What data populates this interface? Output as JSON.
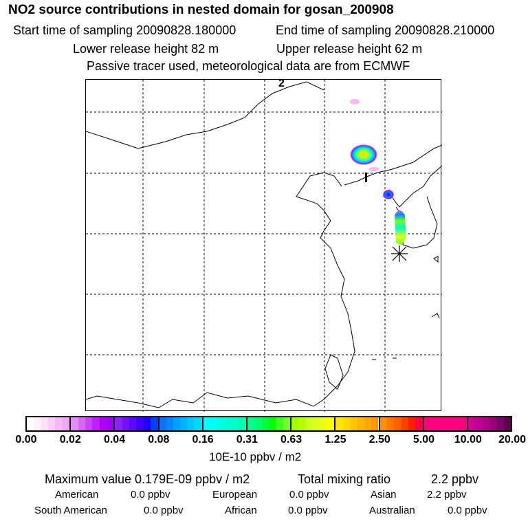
{
  "title": "NO2 source contributions in nested domain for gosan_200908",
  "header": {
    "start": "Start time of sampling 20090828.180000",
    "end": "End time of sampling 20090828.210000",
    "lower": "Lower release height   82 m",
    "upper": "Upper release height   62 m",
    "note": "Passive tracer used, meteorological data are from ECMWF"
  },
  "map": {
    "labels": [
      "2",
      "1"
    ]
  },
  "colorbar": {
    "ticks": [
      "0.00",
      "0.02",
      "0.04",
      "0.08",
      "0.16",
      "0.31",
      "0.63",
      "1.25",
      "2.50",
      "5.00",
      "10.00",
      "20.00"
    ],
    "unit": "10E-10 ppbv / m2",
    "segments": [
      [
        "#ffffff",
        "#fff0fc",
        "#fde0fa",
        "#f9cdf7",
        "#f4b8f4",
        "#f0a8f2"
      ],
      [
        "#e38ef5",
        "#d866f7",
        "#cc44f8",
        "#c020fa",
        "#b000fb",
        "#a000fc"
      ],
      [
        "#8a20fb",
        "#7010fd",
        "#5a08fe",
        "#4000ff",
        "#2000ff",
        "#0040ff"
      ],
      [
        "#1070ff",
        "#0088ff",
        "#00a0ff",
        "#00b4ff",
        "#00c8ff",
        "#00dcff"
      ],
      [
        "#00ffff",
        "#00fff0",
        "#00ffe0",
        "#00ffd0",
        "#00ffc4",
        "#00ffb4"
      ],
      [
        "#00ff90",
        "#00ff70",
        "#00ff40",
        "#00ff00",
        "#40ff20",
        "#70ff20"
      ],
      [
        "#a0ff00",
        "#b8ff00",
        "#ccff20",
        "#ddff20",
        "#eeff10",
        "#ffff00"
      ],
      [
        "#ffe800",
        "#ffd800",
        "#ffc800",
        "#ffb800",
        "#ffa800",
        "#ff9800"
      ],
      [
        "#ff9000",
        "#ff7800",
        "#ff6000",
        "#ff4000",
        "#ff2000",
        "#ff0040"
      ],
      [
        "#ff0080",
        "#ff0080",
        "#ff0080",
        "#ff0080",
        "#ff0080",
        "#ff0080"
      ],
      [
        "#d0009a",
        "#c00090",
        "#b00088",
        "#9a007a",
        "#80006a",
        "#600050"
      ]
    ]
  },
  "summary": {
    "max": "Maximum value  0.179E-09 ppbv / m2",
    "total_label": "Total mixing ratio",
    "total_value": "2.2 ppbv",
    "rows": [
      [
        [
          "American",
          "0.0 ppbv"
        ],
        [
          "European",
          "0.0 ppbv"
        ],
        [
          "Asian",
          "2.2 ppbv"
        ]
      ],
      [
        [
          "South American",
          "0.0 ppbv"
        ],
        [
          "African",
          "0.0 ppbv"
        ],
        [
          "Australian",
          "0.0 ppbv"
        ]
      ]
    ]
  }
}
